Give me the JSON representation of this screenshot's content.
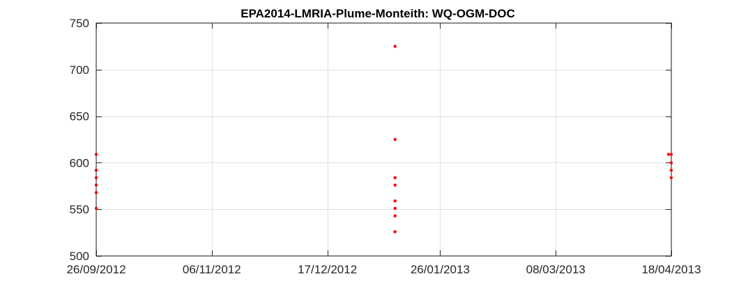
{
  "chart_data": {
    "type": "scatter",
    "title": "EPA2014-LMRIA-Plume-Monteith: WQ-OGM-DOC",
    "xlabel": "",
    "ylabel": "",
    "x_type": "date",
    "xlim": [
      "2012-09-26",
      "2013-04-18"
    ],
    "ylim": [
      500,
      750
    ],
    "x_ticks": [
      "2012-09-26",
      "2012-11-06",
      "2012-12-17",
      "2013-01-26",
      "2013-03-08",
      "2013-04-18"
    ],
    "x_tick_labels": [
      "26/09/2012",
      "06/11/2012",
      "17/12/2012",
      "26/01/2013",
      "08/03/2013",
      "18/04/2013"
    ],
    "y_ticks": [
      500,
      550,
      600,
      650,
      700,
      750
    ],
    "y_tick_labels": [
      "500",
      "550",
      "600",
      "650",
      "700",
      "750"
    ],
    "grid": true,
    "marker_color": "#ff0000",
    "series": [
      {
        "points": [
          {
            "x": "2012-09-26",
            "y": 609
          },
          {
            "x": "2012-09-26",
            "y": 592
          },
          {
            "x": "2012-09-26",
            "y": 584
          },
          {
            "x": "2012-09-26",
            "y": 576
          },
          {
            "x": "2012-09-26",
            "y": 568
          },
          {
            "x": "2012-09-26",
            "y": 551
          },
          {
            "x": "2013-01-10",
            "y": 725
          },
          {
            "x": "2013-01-10",
            "y": 625
          },
          {
            "x": "2013-01-10",
            "y": 584
          },
          {
            "x": "2013-01-10",
            "y": 576
          },
          {
            "x": "2013-01-10",
            "y": 559
          },
          {
            "x": "2013-01-10",
            "y": 551
          },
          {
            "x": "2013-01-10",
            "y": 543
          },
          {
            "x": "2013-01-10",
            "y": 526
          },
          {
            "x": "2013-04-17",
            "y": 609
          },
          {
            "x": "2013-04-18",
            "y": 609
          },
          {
            "x": "2013-04-18",
            "y": 600
          },
          {
            "x": "2013-04-18",
            "y": 592
          },
          {
            "x": "2013-04-18",
            "y": 584
          }
        ]
      }
    ]
  }
}
